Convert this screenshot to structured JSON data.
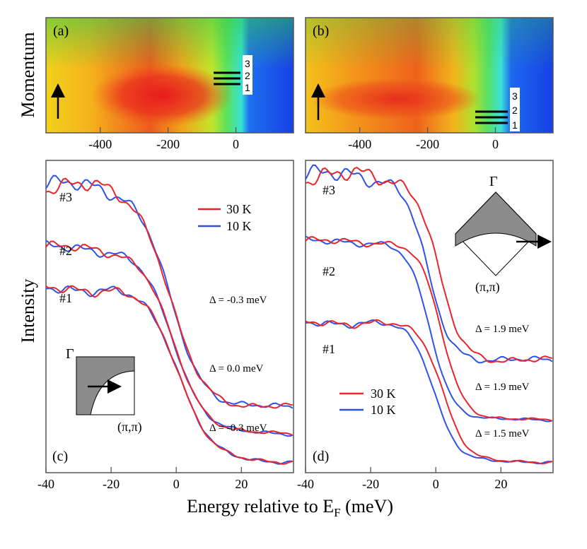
{
  "colors": {
    "red": "#e8262e",
    "blue": "#2f53e6",
    "frame": "#555555",
    "inset_fill": "#8c8c8c",
    "axis_text": "#000000"
  },
  "labels": {
    "y_top": "Momentum",
    "y_bottom": "Intensity",
    "x_label_prefix": "Energy relative to E",
    "x_label_sub": "F",
    "x_label_suffix": " (meV)"
  },
  "chart_data": [
    {
      "id": "a",
      "type": "heatmap",
      "panel_label": "(a)",
      "xlabel": "",
      "ylabel": "Momentum",
      "xlim": [
        -560,
        170
      ],
      "xticks": [
        -400,
        -200,
        0
      ],
      "tick_labels": [
        "-400",
        "-200",
        "0"
      ],
      "peak_energy": -200,
      "edge_energy": 15,
      "cut_markers": [
        "1",
        "2",
        "3"
      ],
      "arrow": "momentum-direction"
    },
    {
      "id": "b",
      "type": "heatmap",
      "panel_label": "(b)",
      "xlabel": "",
      "ylabel": "",
      "xlim": [
        -560,
        170
      ],
      "xticks": [
        -400,
        -200,
        0
      ],
      "tick_labels": [
        "-400",
        "-200",
        "0"
      ],
      "peak_energy": -250,
      "edge_energy": 20,
      "cut_markers": [
        "1",
        "2",
        "3"
      ],
      "arrow": "momentum-direction"
    },
    {
      "id": "c",
      "type": "line",
      "panel_label": "(c)",
      "xlabel": "Energy relative to EF (meV)",
      "ylabel": "Intensity",
      "xlim": [
        -40,
        36
      ],
      "ylim": [
        0,
        10
      ],
      "xticks": [
        -40,
        -20,
        0,
        20
      ],
      "tick_labels": [
        "-40",
        "-20",
        "0",
        "20"
      ],
      "legend": [
        {
          "name": "30 K",
          "color": "#e8262e"
        },
        {
          "name": "10 K",
          "color": "#2f53e6"
        }
      ],
      "legend_position": "top-right",
      "inset": {
        "gamma": "Γ",
        "corner": "(π,π)",
        "fs": "arc",
        "arrow": "horizontal"
      },
      "curves": [
        {
          "id": "#3",
          "label": "#3",
          "gap": "Δ = -0.3 meV",
          "high": 9.2,
          "low": 2.1,
          "center": -2,
          "width": 5,
          "wiggle": 0.55
        },
        {
          "id": "#2",
          "label": "#2",
          "gap": "Δ = 0.0 meV",
          "high": 7.2,
          "low": 1.25,
          "center": -1,
          "width": 5,
          "wiggle": 0.35
        },
        {
          "id": "#1",
          "label": "#1",
          "gap": "Δ = -0.3 meV",
          "high": 5.9,
          "low": 0.35,
          "center": 1,
          "width": 5,
          "wiggle": 0.35
        }
      ]
    },
    {
      "id": "d",
      "type": "line",
      "panel_label": "(d)",
      "xlabel": "Energy relative to EF (meV)",
      "ylabel": "",
      "xlim": [
        -40,
        36
      ],
      "ylim": [
        0,
        10
      ],
      "xticks": [
        -40,
        -20,
        0,
        20
      ],
      "tick_labels": [
        "-40",
        "-20",
        "0",
        "20"
      ],
      "legend": [
        {
          "name": "30 K",
          "color": "#e8262e"
        },
        {
          "name": "10 K",
          "color": "#2f53e6"
        }
      ],
      "legend_position": "bottom-center",
      "inset": {
        "gamma": "Γ",
        "corner": "(π,π)",
        "fs": "arc",
        "arrow": "horizontal"
      },
      "curves": [
        {
          "id": "#3",
          "label": "#3",
          "gap": "Δ = 1.9 meV",
          "high": 9.5,
          "low": 3.6,
          "center": -1,
          "width": 3.5,
          "wiggle": 0.6,
          "shift": 1.9
        },
        {
          "id": "#2",
          "label": "#2",
          "gap": "Δ = 1.9 meV",
          "high": 7.4,
          "low": 1.7,
          "center": 0,
          "width": 3.5,
          "wiggle": 0.25,
          "shift": 1.9
        },
        {
          "id": "#1",
          "label": "#1",
          "gap": "Δ = 1.5 meV",
          "high": 4.8,
          "low": 0.35,
          "center": 1,
          "width": 3.5,
          "wiggle": 0.25,
          "shift": 1.5
        }
      ]
    }
  ]
}
